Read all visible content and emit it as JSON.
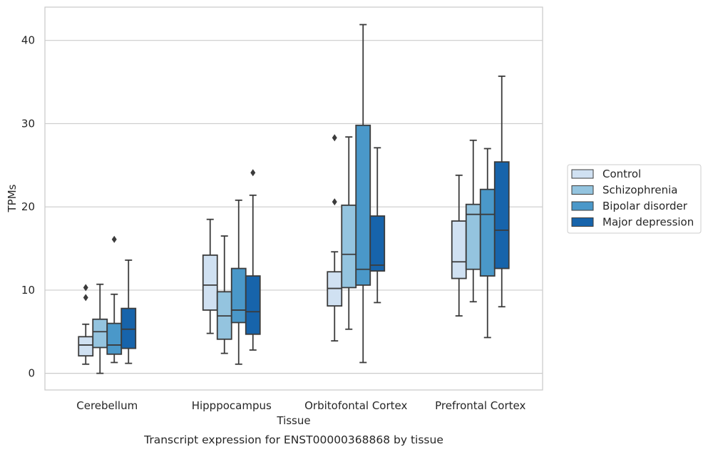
{
  "chart_data": {
    "type": "box",
    "title": "Transcript expression for ENST00000368868 by tissue",
    "xlabel": "Tissue",
    "ylabel": "TPMs",
    "ylim": [
      -2,
      44
    ],
    "yticks": [
      0,
      10,
      20,
      30,
      40
    ],
    "grid": "horizontal",
    "legend_position": "right",
    "categories": [
      "Cerebellum",
      "Hipppocampus",
      "Orbitofontal Cortex",
      "Prefrontal Cortex"
    ],
    "series": [
      {
        "name": "Control",
        "color": "#d0e1f2",
        "boxes": [
          {
            "whislo": 1.1,
            "q1": 2.1,
            "med": 3.4,
            "q3": 4.4,
            "whishi": 5.9,
            "fliers": [
              9.1,
              10.3
            ]
          },
          {
            "whislo": 4.8,
            "q1": 7.6,
            "med": 10.6,
            "q3": 14.2,
            "whishi": 18.5,
            "fliers": []
          },
          {
            "whislo": 3.9,
            "q1": 8.1,
            "med": 10.2,
            "q3": 12.2,
            "whishi": 14.6,
            "fliers": [
              20.6,
              28.3
            ]
          },
          {
            "whislo": 6.9,
            "q1": 11.4,
            "med": 13.4,
            "q3": 18.3,
            "whishi": 23.8,
            "fliers": []
          }
        ]
      },
      {
        "name": "Schizophrenia",
        "color": "#94c4df",
        "boxes": [
          {
            "whislo": 0.0,
            "q1": 3.1,
            "med": 5.0,
            "q3": 6.5,
            "whishi": 10.7,
            "fliers": []
          },
          {
            "whislo": 2.4,
            "q1": 4.1,
            "med": 6.9,
            "q3": 9.8,
            "whishi": 16.5,
            "fliers": []
          },
          {
            "whislo": 5.3,
            "q1": 10.3,
            "med": 14.3,
            "q3": 20.2,
            "whishi": 28.4,
            "fliers": []
          },
          {
            "whislo": 8.6,
            "q1": 12.5,
            "med": 19.1,
            "q3": 20.3,
            "whishi": 28.0,
            "fliers": []
          }
        ]
      },
      {
        "name": "Bipolar disorder",
        "color": "#4a98c9",
        "boxes": [
          {
            "whislo": 1.3,
            "q1": 2.3,
            "med": 3.4,
            "q3": 6.0,
            "whishi": 9.5,
            "fliers": [
              16.1
            ]
          },
          {
            "whislo": 1.1,
            "q1": 6.1,
            "med": 7.6,
            "q3": 12.6,
            "whishi": 20.8,
            "fliers": []
          },
          {
            "whislo": 1.3,
            "q1": 10.6,
            "med": 12.5,
            "q3": 29.8,
            "whishi": 41.9,
            "fliers": []
          },
          {
            "whislo": 4.3,
            "q1": 11.7,
            "med": 19.1,
            "q3": 22.1,
            "whishi": 27.0,
            "fliers": []
          }
        ]
      },
      {
        "name": "Major depression",
        "color": "#1764ab",
        "boxes": [
          {
            "whislo": 1.2,
            "q1": 3.0,
            "med": 5.3,
            "q3": 7.8,
            "whishi": 13.6,
            "fliers": []
          },
          {
            "whislo": 2.8,
            "q1": 4.7,
            "med": 7.4,
            "q3": 11.7,
            "whishi": 21.4,
            "fliers": [
              24.1
            ]
          },
          {
            "whislo": 8.5,
            "q1": 12.3,
            "med": 13.0,
            "q3": 18.9,
            "whishi": 27.1,
            "fliers": []
          },
          {
            "whislo": 8.0,
            "q1": 12.6,
            "med": 17.2,
            "q3": 25.4,
            "whishi": 35.7,
            "fliers": []
          }
        ]
      }
    ]
  }
}
